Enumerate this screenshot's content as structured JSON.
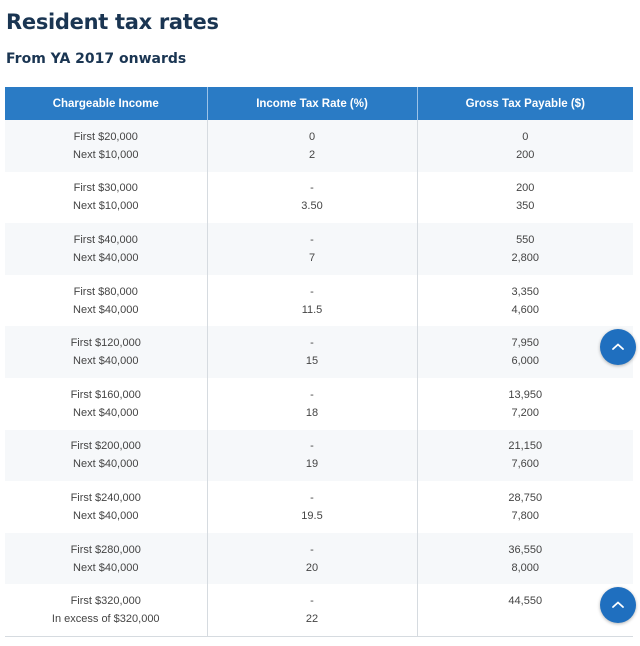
{
  "header": {
    "title": "Resident tax rates",
    "subtitle": "From YA 2017 onwards"
  },
  "table": {
    "columns": [
      "Chargeable Income",
      "Income Tax Rate (%)",
      "Gross Tax Payable ($)"
    ],
    "rows": [
      {
        "income": [
          "First $20,000",
          "Next $10,000"
        ],
        "rate": [
          "0",
          "2"
        ],
        "payable": [
          "0",
          "200"
        ]
      },
      {
        "income": [
          "First $30,000",
          "Next $10,000"
        ],
        "rate": [
          "-",
          "3.50"
        ],
        "payable": [
          "200",
          "350"
        ]
      },
      {
        "income": [
          "First $40,000",
          "Next $40,000"
        ],
        "rate": [
          "-",
          "7"
        ],
        "payable": [
          "550",
          "2,800"
        ]
      },
      {
        "income": [
          "First $80,000",
          "Next $40,000"
        ],
        "rate": [
          "-",
          "11.5"
        ],
        "payable": [
          "3,350",
          "4,600"
        ]
      },
      {
        "income": [
          "First $120,000",
          "Next $40,000"
        ],
        "rate": [
          "-",
          "15"
        ],
        "payable": [
          "7,950",
          "6,000"
        ]
      },
      {
        "income": [
          "First $160,000",
          "Next $40,000"
        ],
        "rate": [
          "-",
          "18"
        ],
        "payable": [
          "13,950",
          "7,200"
        ]
      },
      {
        "income": [
          "First $200,000",
          "Next $40,000"
        ],
        "rate": [
          "-",
          "19"
        ],
        "payable": [
          "21,150",
          "7,600"
        ]
      },
      {
        "income": [
          "First $240,000",
          "Next $40,000"
        ],
        "rate": [
          "-",
          "19.5"
        ],
        "payable": [
          "28,750",
          "7,800"
        ]
      },
      {
        "income": [
          "First $280,000",
          "Next $40,000"
        ],
        "rate": [
          "-",
          "20"
        ],
        "payable": [
          "36,550",
          "8,000"
        ]
      },
      {
        "income": [
          "First $320,000",
          "In excess of $320,000"
        ],
        "rate": [
          "-",
          "22"
        ],
        "payable": [
          "44,550",
          ""
        ]
      }
    ]
  },
  "scroll_buttons": [
    {
      "icon": "chevron-up-icon"
    },
    {
      "icon": "chevron-up-icon"
    }
  ],
  "colors": {
    "header_bg": "#2a7bc5",
    "title_text": "#1a3552",
    "button_bg": "#1f6fbf"
  }
}
